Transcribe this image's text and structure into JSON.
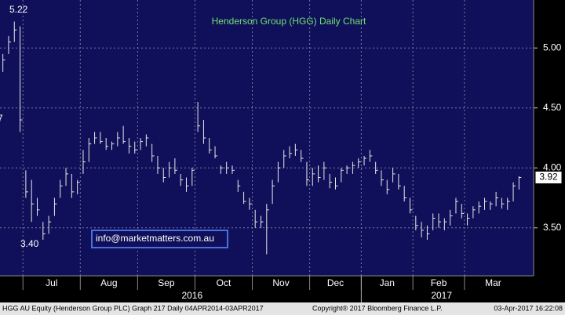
{
  "chart_data": {
    "type": "ohlc",
    "title": "Henderson Group (HGG) Daily Chart",
    "categories": [
      null,
      "Jul",
      "Aug",
      "Sep",
      "Oct",
      "Nov",
      "Dec",
      "Jan",
      "Feb",
      "Mar"
    ],
    "years": [
      "2016",
      "2017"
    ],
    "bars": [
      [
        [
          4.95,
          4.8,
          4.9
        ],
        [
          5.1,
          4.95,
          5.05
        ],
        [
          5.22,
          5.05,
          5.15
        ],
        [
          5.18,
          4.3,
          4.4
        ]
      ],
      [
        [
          3.98,
          3.75,
          3.8
        ],
        [
          3.9,
          3.55,
          3.7
        ],
        [
          3.75,
          3.6,
          3.65
        ],
        [
          3.55,
          3.4,
          3.45
        ],
        [
          3.6,
          3.45,
          3.55
        ],
        [
          3.75,
          3.6,
          3.7
        ],
        [
          3.9,
          3.75,
          3.85
        ],
        [
          4.0,
          3.85,
          3.95
        ],
        [
          3.95,
          3.75,
          3.8
        ],
        [
          3.9,
          3.78,
          3.88
        ]
      ],
      [
        [
          4.15,
          3.95,
          4.05
        ],
        [
          4.25,
          4.05,
          4.2
        ],
        [
          4.3,
          4.2,
          4.25
        ],
        [
          4.3,
          4.2,
          4.22
        ],
        [
          4.25,
          4.15,
          4.18
        ],
        [
          4.22,
          4.15,
          4.2
        ],
        [
          4.3,
          4.18,
          4.25
        ],
        [
          4.35,
          4.2,
          4.22
        ],
        [
          4.25,
          4.12,
          4.18
        ],
        [
          4.22,
          4.12,
          4.15
        ]
      ],
      [
        [
          4.25,
          4.15,
          4.22
        ],
        [
          4.28,
          4.18,
          4.25
        ],
        [
          4.2,
          4.05,
          4.1
        ],
        [
          4.1,
          3.95,
          4.0
        ],
        [
          4.0,
          3.88,
          3.92
        ],
        [
          4.05,
          3.92,
          4.0
        ],
        [
          4.08,
          3.95,
          3.98
        ],
        [
          3.95,
          3.85,
          3.9
        ],
        [
          3.92,
          3.8,
          3.85
        ],
        [
          4.0,
          3.85,
          3.98
        ]
      ],
      [
        [
          4.55,
          4.3,
          4.35
        ],
        [
          4.4,
          4.2,
          4.25
        ],
        [
          4.25,
          4.12,
          4.15
        ],
        [
          4.18,
          4.08,
          4.1
        ],
        [
          4.02,
          3.95,
          4.0
        ],
        [
          4.05,
          3.95,
          4.0
        ],
        [
          4.02,
          3.95,
          3.98
        ],
        [
          3.9,
          3.8,
          3.85
        ],
        [
          3.8,
          3.7,
          3.72
        ],
        [
          3.75,
          3.65,
          3.7
        ]
      ],
      [
        [
          3.65,
          3.5,
          3.55
        ],
        [
          3.6,
          3.5,
          3.55
        ],
        [
          3.7,
          3.28,
          3.65
        ],
        [
          3.9,
          3.7,
          3.85
        ],
        [
          4.05,
          3.88,
          4.0
        ],
        [
          4.15,
          4.0,
          4.1
        ],
        [
          4.18,
          4.08,
          4.12
        ],
        [
          4.2,
          4.1,
          4.15
        ],
        [
          4.15,
          4.05,
          4.08
        ],
        [
          4.05,
          3.85,
          3.9
        ]
      ],
      [
        [
          4.0,
          3.85,
          3.95
        ],
        [
          4.02,
          3.88,
          3.92
        ],
        [
          4.05,
          3.9,
          4.0
        ],
        [
          3.95,
          3.83,
          3.88
        ],
        [
          3.92,
          3.82,
          3.85
        ],
        [
          4.0,
          3.88,
          3.98
        ],
        [
          4.02,
          3.95,
          4.0
        ],
        [
          4.05,
          3.95,
          4.02
        ],
        [
          4.08,
          4.0,
          4.05
        ]
      ],
      [
        [
          4.1,
          4.02,
          4.08
        ],
        [
          4.15,
          4.05,
          4.1
        ],
        [
          4.05,
          3.95,
          3.98
        ],
        [
          3.98,
          3.85,
          3.9
        ],
        [
          3.9,
          3.78,
          3.82
        ],
        [
          4.0,
          3.88,
          3.95
        ],
        [
          3.95,
          3.82,
          3.85
        ],
        [
          3.85,
          3.72,
          3.75
        ],
        [
          3.75,
          3.62,
          3.65
        ]
      ],
      [
        [
          3.6,
          3.48,
          3.52
        ],
        [
          3.55,
          3.42,
          3.48
        ],
        [
          3.52,
          3.4,
          3.45
        ],
        [
          3.62,
          3.48,
          3.58
        ],
        [
          3.62,
          3.5,
          3.55
        ],
        [
          3.58,
          3.48,
          3.55
        ],
        [
          3.65,
          3.52,
          3.6
        ],
        [
          3.75,
          3.62,
          3.72
        ],
        [
          3.7,
          3.58,
          3.62
        ]
      ],
      [
        [
          3.62,
          3.52,
          3.58
        ],
        [
          3.68,
          3.58,
          3.65
        ],
        [
          3.72,
          3.62,
          3.68
        ],
        [
          3.75,
          3.65,
          3.72
        ],
        [
          3.72,
          3.65,
          3.7
        ],
        [
          3.8,
          3.68,
          3.75
        ],
        [
          3.75,
          3.66,
          3.7
        ],
        [
          3.75,
          3.65,
          3.72
        ],
        [
          3.88,
          3.72,
          3.85
        ],
        [
          3.93,
          3.82,
          3.92
        ]
      ]
    ],
    "last_price": 3.92,
    "ylim": [
      3.1,
      5.4
    ],
    "yticks": [
      {
        "value": 3.5,
        "label": "3.50"
      },
      {
        "value": 4,
        "label": "4.00"
      },
      {
        "value": 4.5,
        "label": "4.50"
      },
      {
        "value": 5,
        "label": "5.00"
      }
    ],
    "grid": true,
    "annotations": [
      "5.22",
      "3.40",
      "7"
    ],
    "watermark": "info@marketmatters.com.au",
    "footer": {
      "left": "HGG AU Equity (Henderson Group PLC) Graph 217  Daily 04APR2014-03APR2017",
      "center": "Copyright® 2017 Bloomberg Finance L.P.",
      "right": "03-Apr-2017 16:22:08"
    }
  }
}
